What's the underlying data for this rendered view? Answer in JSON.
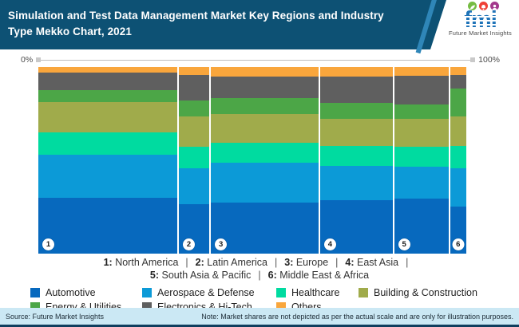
{
  "header": {
    "title_line1": "Simulation and Test Data Management Market Key Regions and Industry",
    "title_line2": "Type Mekko Chart, 2021",
    "logo": {
      "text": "fmi",
      "subtitle": "Future Market Insights",
      "icon_colors": {
        "leaf": "#76bc43",
        "bell": "#ef4136",
        "person": "#a3388c"
      },
      "text_color": "#1e73b8"
    }
  },
  "scale": {
    "left_label": "0%",
    "right_label": "100%"
  },
  "chart_data": {
    "type": "mekko",
    "title": "Simulation and Test Data Management Market Key Regions and Industry Type Mekko Chart, 2021",
    "x_axis": {
      "left": "0%",
      "right": "100%"
    },
    "categories": [
      {
        "num": "1",
        "name": "North America"
      },
      {
        "num": "2",
        "name": "Latin America"
      },
      {
        "num": "3",
        "name": "Europe"
      },
      {
        "num": "4",
        "name": "East Asia"
      },
      {
        "num": "5",
        "name": "South Asia & Pacific"
      },
      {
        "num": "6",
        "name": "Middle East & Africa"
      }
    ],
    "column_widths_pct": [
      32.4,
      7.1,
      25.1,
      16.9,
      12.7,
      3.7
    ],
    "series": [
      {
        "name": "Automotive",
        "color": "#0769be",
        "values": [
          29.9,
          26.5,
          27.4,
          28.6,
          29.5,
          25.2
        ]
      },
      {
        "name": "Aerospace & Defense",
        "color": "#0c9ad7",
        "values": [
          23.1,
          19.2,
          21.4,
          18.4,
          17.1,
          20.5
        ]
      },
      {
        "name": "Healthcare",
        "color": "#00dba0",
        "values": [
          12.0,
          11.5,
          10.7,
          10.7,
          10.7,
          12.0
        ]
      },
      {
        "name": "Building & Construction",
        "color": "#a0ab4b",
        "values": [
          16.2,
          16.2,
          15.4,
          14.5,
          15.0,
          15.8
        ]
      },
      {
        "name": "Energy & Utilities",
        "color": "#4ca647",
        "values": [
          6.4,
          8.5,
          8.5,
          8.5,
          7.7,
          15.0
        ]
      },
      {
        "name": "Electronics & Hi-Tech",
        "color": "#5f5f5f",
        "values": [
          9.4,
          13.7,
          11.5,
          14.2,
          15.4,
          7.3
        ]
      },
      {
        "name": "Others",
        "color": "#f9a63c",
        "values": [
          3.0,
          4.3,
          5.1,
          5.1,
          4.7,
          4.3
        ]
      }
    ],
    "stack_order_top_to_bottom": [
      "Others",
      "Electronics & Hi-Tech",
      "Energy & Utilities",
      "Building & Construction",
      "Healthcare",
      "Aerospace & Defense",
      "Automotive"
    ],
    "legend_position": "bottom",
    "values_unit": "percent of column height (illustrative)"
  },
  "region_legend": {
    "line1_indices": [
      0,
      1,
      2,
      3
    ],
    "line1_trailing_separator": true,
    "line2_indices": [
      4,
      5
    ],
    "separator": "|"
  },
  "industry_legend": {
    "row1_indices": [
      0,
      1,
      2,
      3
    ],
    "row2_indices": [
      4,
      5,
      6
    ]
  },
  "footer": {
    "source": "Source: Future Market Insights",
    "note": "Note: Market shares are not depicted as per the actual scale and are only for illustration purposes."
  }
}
